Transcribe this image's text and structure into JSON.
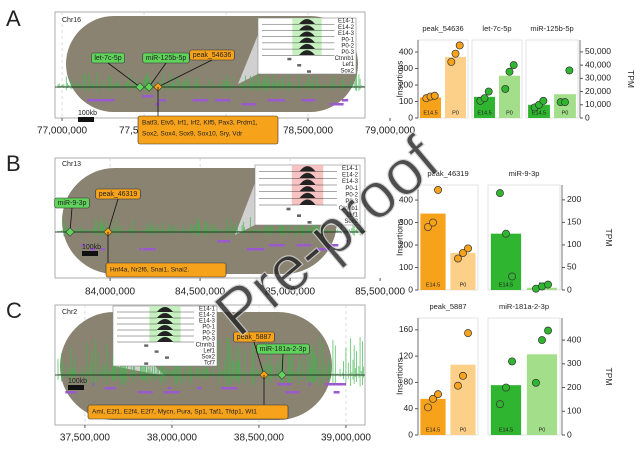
{
  "watermark": "Pre-proof",
  "panels": [
    {
      "letter": "A",
      "chrom": "Chr16",
      "scale": "100kb",
      "xlim": [
        76957000,
        79000000
      ],
      "xticks": [
        {
          "value": 77000000,
          "label": "77,000,000"
        },
        {
          "value": 77500000,
          "label": "77,500,000"
        },
        {
          "value": 78000000,
          "label": "78,000,000"
        },
        {
          "value": 78500000,
          "label": "78,500,000"
        },
        {
          "value": 79000000,
          "label": "79,000,000"
        }
      ],
      "mirnas": [
        "let-7c-5p",
        "miR-125b-5p"
      ],
      "peaks": [
        "peak_54636"
      ],
      "motifs": [
        "Batf3, Etv5, Irf1, Irf2, Klf5, Pax3, Prdm1,",
        "Sox2, Sox4, Sox9, Sox10, Sry, Vdr"
      ],
      "inset": [
        "E14-1",
        "E14-2",
        "E14-3",
        "P0-1",
        "P0-2",
        "P0-3",
        "Ctnnb1",
        "Lef1",
        "Sox2"
      ]
    },
    {
      "letter": "B",
      "chrom": "Chr13",
      "scale": "100kb",
      "xlim": [
        83694000,
        85555000
      ],
      "xticks": [
        {
          "value": 84000000,
          "label": "84,000,000"
        },
        {
          "value": 84500000,
          "label": "84,500,000"
        },
        {
          "value": 85000000,
          "label": "85,000,000"
        },
        {
          "value": 85500000,
          "label": "85,500,000"
        }
      ],
      "mirnas": [
        "miR-9-3p"
      ],
      "peaks": [
        "peak_46319"
      ],
      "motifs": [
        "Hnf4a, Nr2f6, Snai1, Snai2."
      ],
      "inset": [
        "E14-1",
        "E14-2",
        "E14-3",
        "P0-1",
        "P0-2",
        "P0-3",
        "Ctnnb1",
        "Lef1",
        "Sox2"
      ]
    },
    {
      "letter": "C",
      "chrom": "Chr2",
      "scale": "100kb",
      "xlim": [
        37328000,
        39253000
      ],
      "xticks": [
        {
          "value": 37500000,
          "label": "37,500,000"
        },
        {
          "value": 38000000,
          "label": "38,000,000"
        },
        {
          "value": 38500000,
          "label": "38,500,000"
        },
        {
          "value": 39000000,
          "label": "39,000,000"
        }
      ],
      "mirnas": [
        "miR-181a-2-3p"
      ],
      "peaks": [
        "peak_5887"
      ],
      "motifs": [
        "Aml, E2f1, E2f4, E2f7, Mycn, Pura, Sp1, Taf1, Tfdp1, Wt1"
      ],
      "inset": [
        "E14-1",
        "E14-2",
        "E14-3",
        "P0-1",
        "P0-2",
        "P0-3",
        "Ctnnb1",
        "Lef1",
        "Sox2",
        "Tcf7"
      ]
    }
  ],
  "chart_data": [
    {
      "type": "bar",
      "ylabel": "Insertions",
      "y2label": "TPM",
      "ylim": [
        0,
        473
      ],
      "yticks": [
        0,
        100,
        200,
        300,
        400
      ],
      "y2lim": [
        0,
        59000
      ],
      "y2ticks": [
        0,
        {
          "value": 10000,
          "label": "10,000"
        },
        {
          "value": 20000,
          "label": "20,000"
        },
        {
          "value": 30000,
          "label": "30,000"
        },
        {
          "value": 40000,
          "label": "40,000"
        },
        {
          "value": 50000,
          "label": "50,000"
        }
      ],
      "facets": [
        {
          "title": "peak_54636",
          "axis": "y",
          "categories": [
            "E14.5",
            "P0"
          ],
          "values": [
            125,
            370
          ],
          "points": [
            [
              120,
              130,
              135
            ],
            [
              340,
              390,
              440
            ]
          ],
          "colors": [
            "#f7a21b",
            "#fdd08a"
          ]
        },
        {
          "title": "let-7c-5p",
          "axis": "y2",
          "categories": [
            "E14.5",
            "P0"
          ],
          "values": [
            16000,
            32000
          ],
          "points": [
            [
              13000,
              15000,
              20000
            ],
            [
              22000,
              35000,
              40000
            ]
          ],
          "colors": [
            "#2fb52f",
            "#a3df8a"
          ]
        },
        {
          "title": "miR-125b-5p",
          "axis": "y2",
          "categories": [
            "E14.5",
            "P0"
          ],
          "values": [
            10000,
            18000
          ],
          "points": [
            [
              8000,
              10000,
              13000
            ],
            [
              12000,
              12000,
              36000
            ]
          ],
          "colors": [
            "#2fb52f",
            "#a3df8a"
          ]
        }
      ]
    },
    {
      "type": "bar",
      "ylabel": "Insertions",
      "y2label": "TPM",
      "ylim": [
        0,
        467
      ],
      "yticks": [
        0,
        100,
        200,
        300,
        400
      ],
      "y2lim": [
        0,
        233
      ],
      "y2ticks": [
        0,
        50,
        100,
        150,
        200
      ],
      "facets": [
        {
          "title": "peak_46319",
          "axis": "y",
          "categories": [
            "E14.5",
            "P0"
          ],
          "values": [
            340,
            165
          ],
          "points": [
            [
              280,
              300,
              445
            ],
            [
              140,
              165,
              185
            ]
          ],
          "colors": [
            "#f7a21b",
            "#fdd08a"
          ]
        },
        {
          "title": "miR-9-3p",
          "axis": "y2",
          "categories": [
            "E14.5",
            "P0"
          ],
          "values": [
            125,
            5
          ],
          "points": [
            [
              215,
              125,
              30
            ],
            [
              3,
              8,
              12
            ]
          ],
          "colors": [
            "#2fb52f",
            "#a3df8a"
          ]
        }
      ]
    },
    {
      "type": "bar",
      "ylabel": "Insertions",
      "y2label": "TPM",
      "ylim": [
        0,
        178
      ],
      "yticks": [
        0,
        40,
        80,
        120,
        160
      ],
      "y2lim": [
        0,
        493
      ],
      "y2ticks": [
        0,
        100,
        200,
        300,
        400
      ],
      "facets": [
        {
          "title": "peak_5887",
          "axis": "y",
          "categories": [
            "E14.5",
            "P0"
          ],
          "values": [
            55,
            107
          ],
          "points": [
            [
              42,
              55,
              62
            ],
            [
              75,
              90,
              155
            ]
          ],
          "colors": [
            "#f7a21b",
            "#fdd08a"
          ]
        },
        {
          "title": "miR-181a-2-3p",
          "axis": "y2",
          "categories": [
            "E14.5",
            "P0"
          ],
          "values": [
            210,
            340
          ],
          "points": [
            [
              130,
              200,
              310
            ],
            [
              220,
              400,
              440
            ]
          ],
          "colors": [
            "#2fb52f",
            "#a3df8a"
          ]
        }
      ]
    }
  ]
}
